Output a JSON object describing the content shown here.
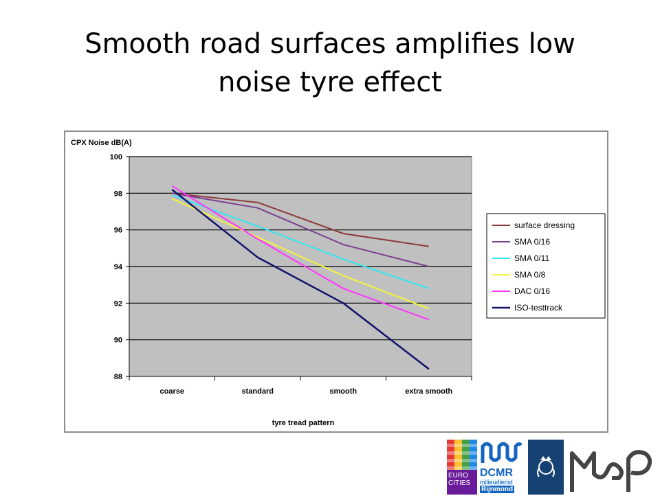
{
  "slide": {
    "title_line1": "Smooth road surfaces amplifies low",
    "title_line2": "noise tyre effect"
  },
  "chart_data": {
    "type": "line",
    "ylabel": "CPX Noise dB(A)",
    "xlabel": "tyre tread pattern",
    "categories": [
      "coarse",
      "standard",
      "smooth",
      "extra smooth"
    ],
    "ylim": [
      88,
      100
    ],
    "yticks": [
      88,
      90,
      92,
      94,
      96,
      98,
      100
    ],
    "grid": true,
    "legend_position": "right",
    "plot_background": "#c0c0c0",
    "series": [
      {
        "name": "surface dressing",
        "color": "#8b3a3a",
        "values": [
          98.0,
          97.5,
          95.8,
          95.1
        ]
      },
      {
        "name": "SMA 0/16",
        "color": "#7b3f8f",
        "values": [
          98.0,
          97.2,
          95.2,
          94.0
        ]
      },
      {
        "name": "SMA 0/11",
        "color": "#33e6f0",
        "values": [
          97.9,
          96.2,
          94.4,
          92.8
        ]
      },
      {
        "name": "SMA 0/8",
        "color": "#f5f53a",
        "values": [
          97.7,
          95.6,
          93.5,
          91.7
        ]
      },
      {
        "name": "DAC 0/16",
        "color": "#ff33ff",
        "values": [
          98.4,
          95.5,
          92.8,
          91.1
        ]
      },
      {
        "name": "ISO-testtrack",
        "color": "#10106b",
        "values": [
          98.2,
          94.5,
          92.0,
          88.4
        ]
      }
    ]
  },
  "logos": {
    "eurocities": "EURO CITIES",
    "dcmr_line1": "DCMR",
    "dcmr_line2": "milieudienst",
    "dcmr_line3": "Rijnmond"
  }
}
